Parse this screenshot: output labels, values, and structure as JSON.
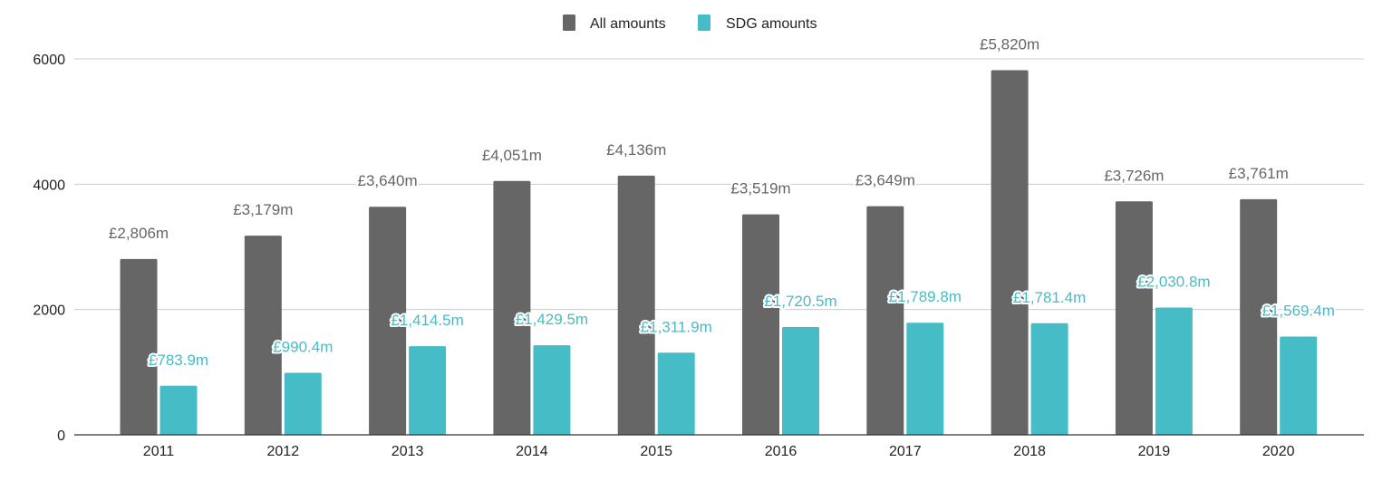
{
  "chart_data": {
    "type": "bar",
    "title": "",
    "xlabel": "",
    "ylabel": "",
    "ylim": [
      0,
      6000
    ],
    "yticks": [
      "0",
      "2000",
      "4000",
      "6000"
    ],
    "grid": true,
    "legend_position": "top",
    "categories": [
      "2011",
      "2012",
      "2013",
      "2014",
      "2015",
      "2016",
      "2017",
      "2018",
      "2019",
      "2020"
    ],
    "series": [
      {
        "name": "All amounts",
        "color": "#666666",
        "values": [
          2806,
          3179,
          3640,
          4051,
          4136,
          3519,
          3649,
          5820,
          3726,
          3761
        ],
        "labels": [
          "£2,806m",
          "£3,179m",
          "£3,640m",
          "£4,051m",
          "£4,136m",
          "£3,519m",
          "£3,649m",
          "£5,820m",
          "£3,726m",
          "£3,761m"
        ]
      },
      {
        "name": "SDG amounts",
        "color": "#46bdc6",
        "values": [
          783.9,
          990.4,
          1414.5,
          1429.5,
          1311.9,
          1720.5,
          1789.8,
          1781.4,
          2030.8,
          1569.4
        ],
        "labels": [
          "£783.9m",
          "£990.4m",
          "£1,414.5m",
          "£1,429.5m",
          "£1,311.9m",
          "£1,720.5m",
          "£1,789.8m",
          "£1,781.4m",
          "£2,030.8m",
          "£1,569.4m"
        ]
      }
    ]
  }
}
